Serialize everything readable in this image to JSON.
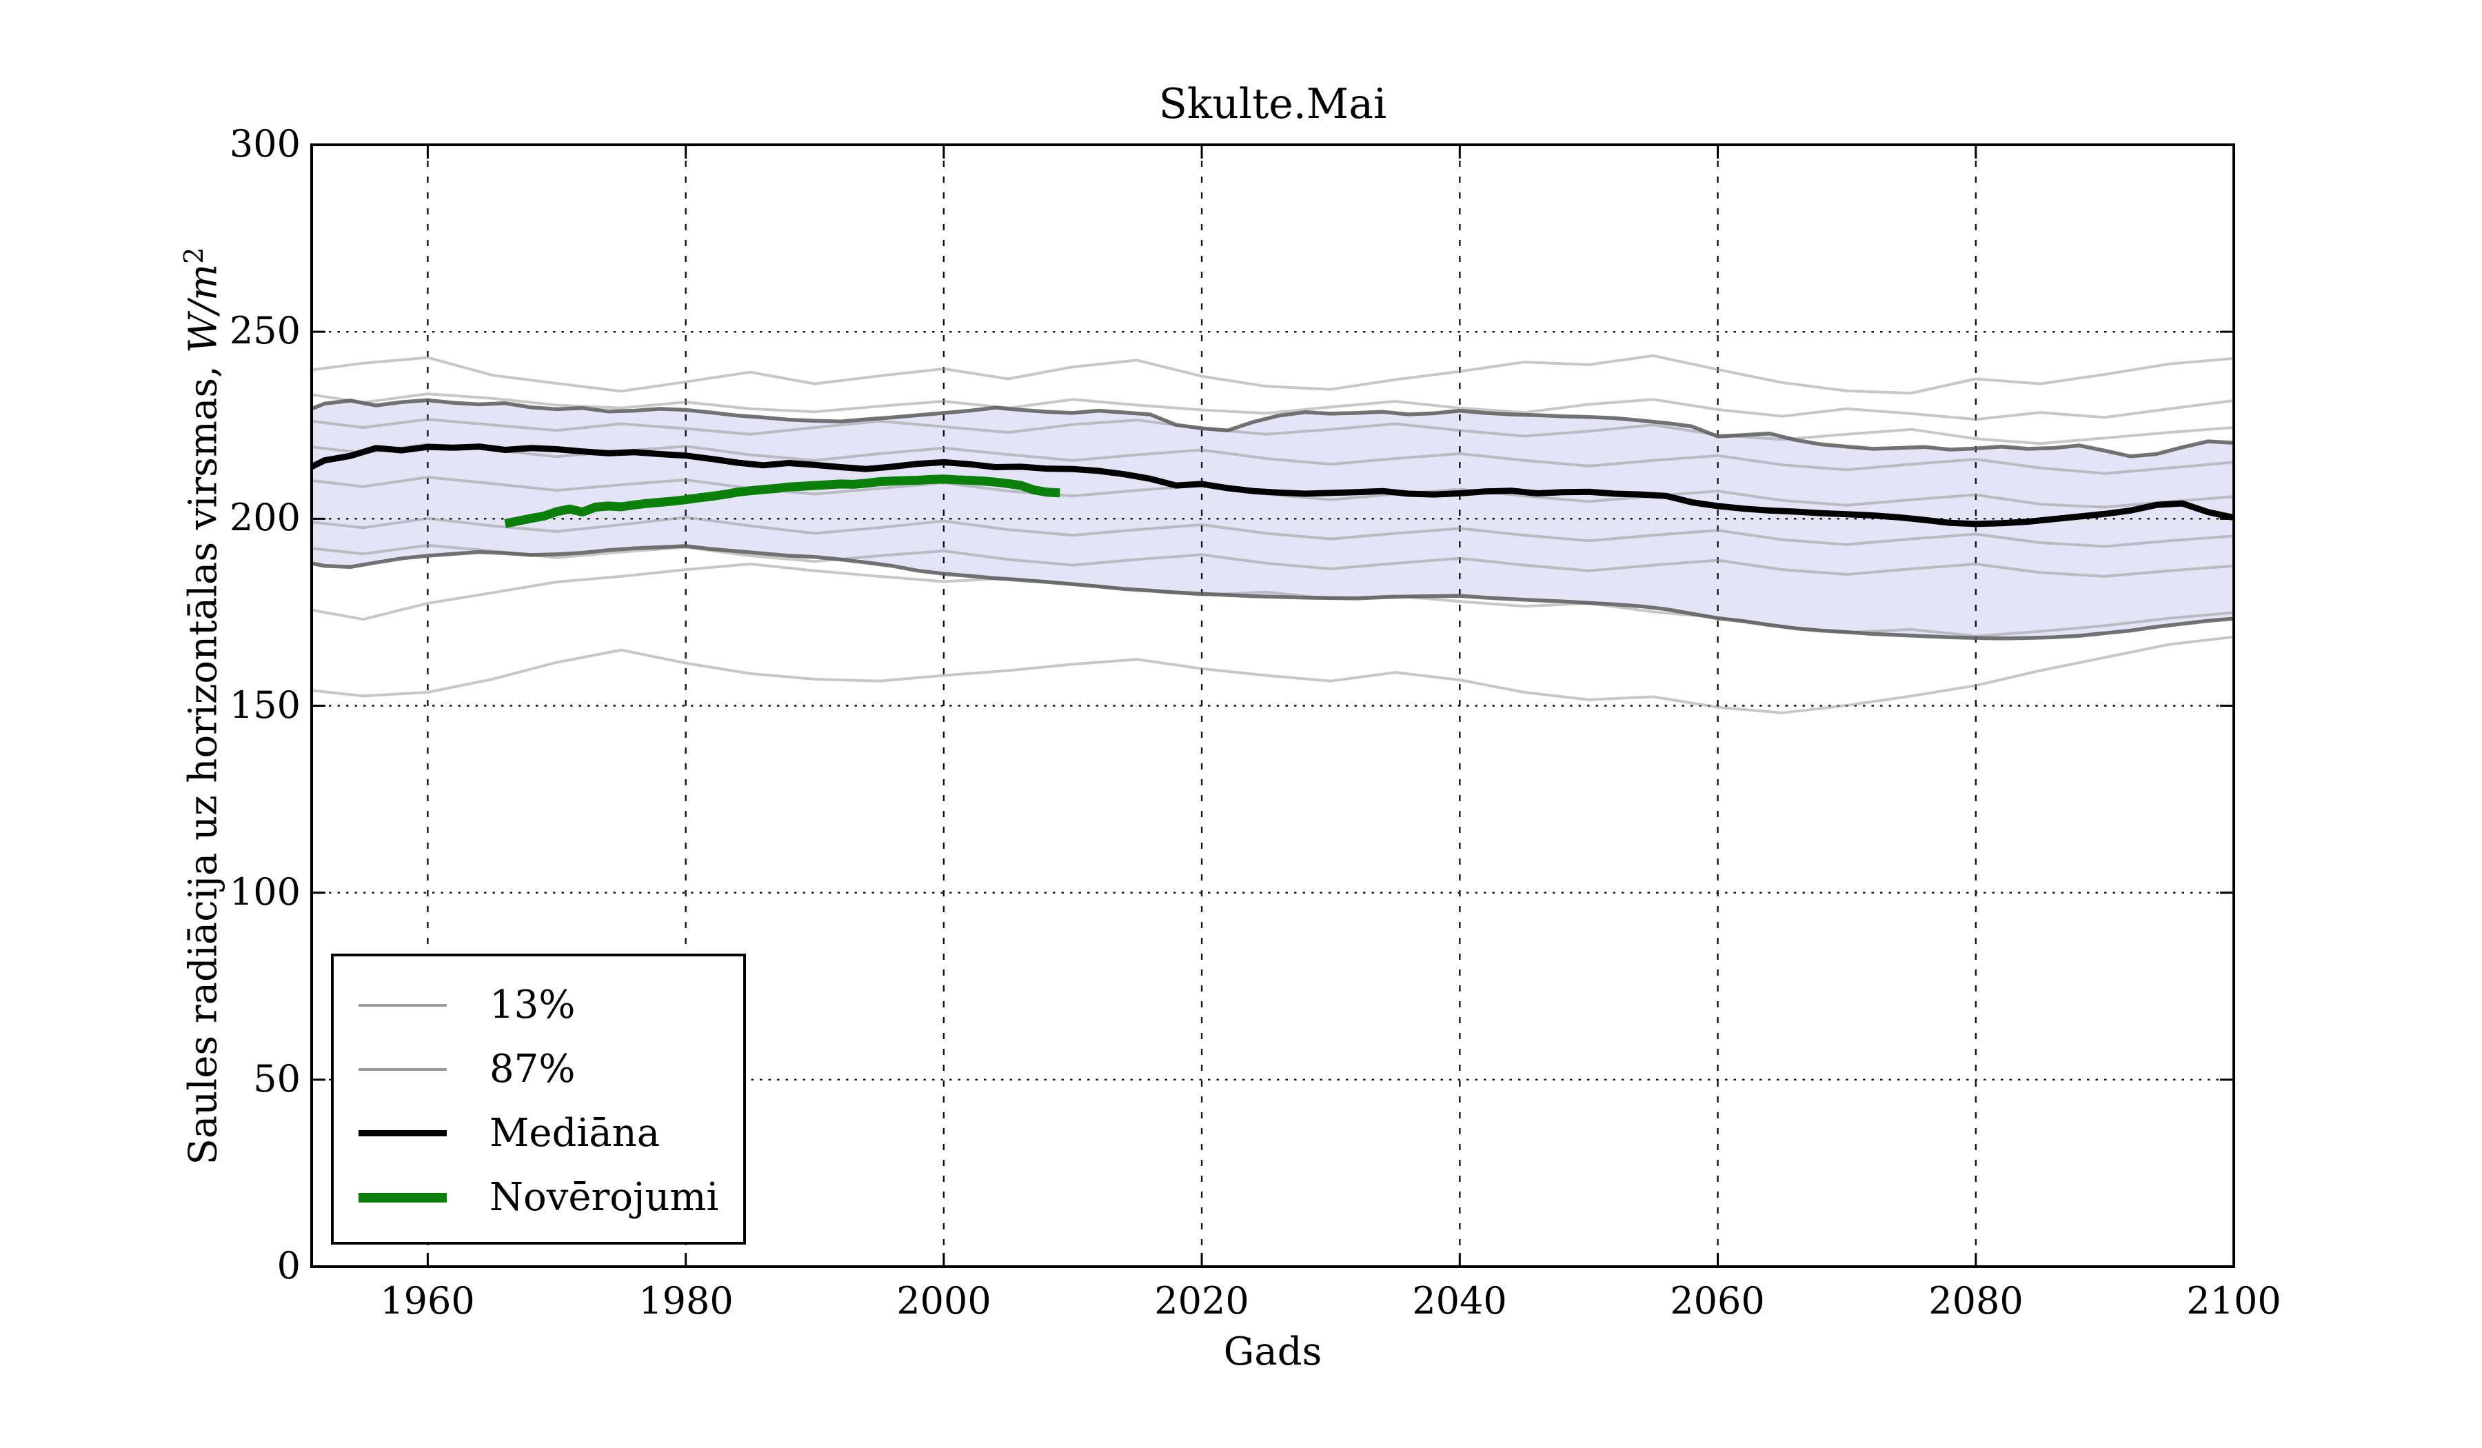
{
  "title": "Skulte.Mai",
  "axes": {
    "x_label": "Gads",
    "y_label_prefix": "Saules radiācija uz horizontālas virsmas, ",
    "y_label_unit": "W/m",
    "y_label_exponent": "2",
    "x_tick_labels": [
      "1960",
      "1980",
      "2000",
      "2020",
      "2040",
      "2060",
      "2080",
      "2100"
    ],
    "y_tick_labels": [
      "300",
      "250",
      "200",
      "150",
      "100",
      "50",
      "0"
    ]
  },
  "legend": {
    "items": [
      {
        "label": "13%",
        "color": "#999999",
        "thickness": 4
      },
      {
        "label": "87%",
        "color": "#999999",
        "thickness": 4
      },
      {
        "label": "Mediāna",
        "color": "#000000",
        "thickness": 9
      },
      {
        "label": "Novērojumi",
        "color": "#0a800a",
        "thickness": 14
      }
    ]
  },
  "chart_data": {
    "type": "line",
    "title": "Skulte.Mai",
    "xlabel": "Gads",
    "ylabel": "Saules radiācija uz horizontālas virsmas, W/m^2",
    "xlim": [
      1951,
      2100
    ],
    "ylim": [
      0,
      300
    ],
    "x_ticks": [
      1960,
      1980,
      2000,
      2020,
      2040,
      2060,
      2080,
      2100
    ],
    "y_ticks": [
      0,
      50,
      100,
      150,
      200,
      250,
      300
    ],
    "grid": true,
    "legend_position": "lower-left",
    "band": {
      "between": [
        "13%",
        "87%"
      ],
      "color": "#5a5ac8",
      "opacity": 0.16
    },
    "years": [
      1951,
      1952,
      1954,
      1956,
      1958,
      1960,
      1962,
      1964,
      1966,
      1968,
      1970,
      1972,
      1974,
      1976,
      1978,
      1980,
      1982,
      1984,
      1986,
      1988,
      1990,
      1992,
      1994,
      1996,
      1998,
      2000,
      2002,
      2004,
      2006,
      2008,
      2010,
      2012,
      2014,
      2016,
      2018,
      2020,
      2022,
      2024,
      2026,
      2028,
      2030,
      2032,
      2034,
      2036,
      2038,
      2040,
      2042,
      2044,
      2046,
      2048,
      2050,
      2052,
      2054,
      2056,
      2058,
      2060,
      2062,
      2064,
      2066,
      2068,
      2070,
      2072,
      2074,
      2076,
      2078,
      2080,
      2082,
      2084,
      2086,
      2088,
      2090,
      2092,
      2094,
      2096,
      2098,
      2100
    ],
    "ensemble_years": [
      1951,
      1955,
      1960,
      1965,
      1970,
      1975,
      1980,
      1985,
      1990,
      1995,
      2000,
      2005,
      2010,
      2015,
      2020,
      2025,
      2030,
      2035,
      2040,
      2045,
      2050,
      2055,
      2060,
      2065,
      2070,
      2075,
      2080,
      2085,
      2090,
      2095,
      2100
    ],
    "series": [
      {
        "name": "87%",
        "role": "p87",
        "color": "#5a5a5a",
        "width": 5.5,
        "opacity": 0.85,
        "y": [
          229.4,
          230.8,
          231.6,
          230.3,
          231.2,
          231.7,
          231.0,
          230.6,
          230.9,
          229.8,
          229.3,
          229.6,
          228.7,
          228.9,
          229.4,
          229.1,
          228.4,
          227.6,
          227.1,
          226.5,
          226.2,
          226.0,
          226.6,
          227.1,
          227.7,
          228.3,
          228.9,
          229.7,
          229.1,
          228.6,
          228.3,
          228.9,
          228.4,
          227.9,
          225.1,
          224.2,
          223.6,
          225.9,
          227.6,
          228.5,
          228.1,
          228.3,
          228.6,
          227.9,
          228.2,
          228.9,
          228.3,
          227.9,
          227.7,
          227.4,
          227.2,
          226.9,
          226.3,
          225.6,
          224.7,
          222.0,
          222.4,
          222.8,
          221.1,
          219.9,
          219.3,
          218.7,
          218.9,
          219.2,
          218.5,
          218.8,
          219.3,
          218.7,
          218.9,
          219.6,
          218.2,
          216.7,
          217.3,
          219.1,
          220.7,
          220.3
        ]
      },
      {
        "name": "13%",
        "role": "p13",
        "color": "#5a5a5a",
        "width": 5.5,
        "opacity": 0.85,
        "y": [
          188.1,
          187.4,
          187.1,
          188.3,
          189.4,
          190.1,
          190.6,
          191.1,
          190.8,
          190.3,
          190.5,
          190.9,
          191.6,
          192.1,
          192.4,
          192.7,
          191.9,
          191.3,
          190.7,
          190.1,
          189.8,
          189.1,
          188.3,
          187.4,
          186.1,
          185.3,
          184.7,
          184.1,
          183.6,
          183.1,
          182.5,
          181.9,
          181.2,
          180.8,
          180.3,
          179.9,
          179.6,
          179.3,
          179.1,
          178.9,
          178.8,
          178.7,
          179.0,
          179.2,
          179.3,
          179.4,
          178.9,
          178.5,
          178.2,
          177.9,
          177.5,
          177.1,
          176.6,
          175.8,
          174.6,
          173.4,
          172.6,
          171.6,
          170.7,
          170.1,
          169.7,
          169.2,
          168.9,
          168.6,
          168.3,
          168.1,
          168.0,
          168.1,
          168.3,
          168.7,
          169.4,
          170.1,
          171.1,
          171.9,
          172.7,
          173.3
        ]
      },
      {
        "name": "Mediāna",
        "role": "median",
        "color": "#000000",
        "width": 9,
        "opacity": 1,
        "y": [
          213.9,
          215.6,
          216.8,
          218.9,
          218.3,
          219.2,
          219.0,
          219.3,
          218.4,
          218.9,
          218.6,
          218.0,
          217.5,
          217.8,
          217.3,
          216.9,
          216.0,
          215.0,
          214.3,
          214.9,
          214.4,
          213.8,
          213.3,
          213.9,
          214.7,
          215.1,
          214.6,
          213.8,
          213.9,
          213.4,
          213.3,
          212.8,
          211.9,
          210.7,
          208.9,
          209.3,
          208.2,
          207.4,
          207.0,
          206.7,
          206.9,
          207.1,
          207.4,
          206.7,
          206.5,
          206.8,
          207.3,
          207.5,
          206.8,
          207.1,
          207.2,
          206.7,
          206.5,
          206.1,
          204.4,
          203.4,
          202.7,
          202.2,
          201.9,
          201.5,
          201.2,
          200.9,
          200.4,
          199.7,
          198.9,
          198.6,
          198.8,
          199.2,
          199.9,
          200.6,
          201.3,
          202.2,
          203.7,
          204.1,
          201.8,
          200.3
        ]
      },
      {
        "name": "Novērojumi",
        "role": "obs",
        "color": "#0a800a",
        "width": 13,
        "opacity": 1,
        "x": [
          1966,
          1967,
          1968,
          1969,
          1970,
          1971,
          1972,
          1973,
          1974,
          1975,
          1976,
          1977,
          1978,
          1979,
          1980,
          1981,
          1982,
          1983,
          1984,
          1985,
          1986,
          1987,
          1988,
          1989,
          1990,
          1991,
          1992,
          1993,
          1994,
          1995,
          1996,
          1997,
          1998,
          1999,
          2000,
          2001,
          2002,
          2003,
          2004,
          2005,
          2006,
          2007,
          2008,
          2009
        ],
        "y": [
          198.7,
          199.4,
          200.1,
          200.7,
          201.9,
          202.6,
          201.8,
          203.1,
          203.4,
          203.2,
          203.7,
          204.1,
          204.4,
          204.7,
          205.1,
          205.6,
          206.0,
          206.5,
          207.1,
          207.5,
          207.8,
          208.1,
          208.5,
          208.7,
          208.9,
          209.1,
          209.3,
          209.2,
          209.5,
          209.9,
          210.1,
          210.2,
          210.3,
          210.5,
          210.6,
          210.4,
          210.3,
          210.1,
          209.8,
          209.4,
          208.9,
          207.7,
          207.1,
          206.9
        ]
      },
      {
        "name": "ensemble-1",
        "role": "ensemble",
        "color": "#909090",
        "width": 4,
        "opacity": 0.5,
        "y": [
          239.8,
          241.6,
          243.1,
          238.4,
          236.2,
          234.1,
          236.6,
          239.2,
          236.1,
          238.2,
          240.1,
          237.4,
          240.6,
          242.4,
          238.1,
          235.4,
          234.6,
          237.2,
          239.4,
          241.9,
          241.2,
          243.6,
          239.9,
          236.4,
          234.2,
          233.6,
          237.4,
          236.1,
          238.6,
          241.4,
          242.9
        ]
      },
      {
        "name": "ensemble-2",
        "role": "ensemble",
        "color": "#909090",
        "width": 4,
        "opacity": 0.5,
        "y": [
          233.2,
          231.1,
          233.4,
          232.2,
          230.4,
          229.6,
          231.2,
          229.4,
          228.6,
          230.1,
          231.4,
          229.6,
          231.9,
          230.4,
          229.1,
          228.2,
          229.9,
          231.4,
          229.6,
          228.4,
          230.6,
          231.9,
          229.2,
          227.4,
          229.4,
          228.1,
          226.6,
          228.4,
          227.1,
          229.4,
          231.6
        ]
      },
      {
        "name": "ensemble-3",
        "role": "ensemble",
        "color": "#909090",
        "width": 4,
        "opacity": 0.5,
        "y": [
          226.1,
          224.4,
          226.6,
          225.1,
          223.6,
          225.4,
          224.1,
          222.6,
          224.4,
          226.1,
          224.6,
          223.1,
          225.2,
          226.4,
          224.1,
          222.6,
          223.9,
          225.4,
          223.6,
          222.1,
          223.4,
          225.1,
          222.4,
          221.2,
          222.6,
          223.9,
          221.4,
          220.1,
          221.6,
          223.1,
          224.4
        ]
      },
      {
        "name": "ensemble-4",
        "role": "ensemble",
        "color": "#909090",
        "width": 4,
        "opacity": 0.5,
        "y": [
          219.2,
          217.6,
          219.9,
          218.4,
          216.6,
          218.1,
          219.4,
          217.1,
          215.6,
          217.4,
          218.9,
          217.2,
          215.6,
          217.1,
          218.4,
          216.1,
          214.6,
          216.1,
          217.4,
          215.6,
          214.1,
          215.6,
          216.9,
          214.4,
          213.1,
          214.6,
          215.9,
          213.6,
          212.1,
          213.6,
          215.1
        ]
      },
      {
        "name": "ensemble-5",
        "role": "ensemble",
        "color": "#909090",
        "width": 4,
        "opacity": 0.5,
        "y": [
          210.2,
          208.6,
          211.1,
          209.4,
          207.6,
          209.1,
          210.4,
          208.1,
          206.6,
          208.1,
          209.6,
          207.4,
          206.1,
          207.6,
          208.9,
          206.6,
          205.1,
          206.6,
          207.9,
          206.1,
          204.6,
          206.1,
          207.4,
          204.9,
          203.6,
          205.1,
          206.4,
          203.9,
          203.1,
          204.6,
          205.9
        ]
      },
      {
        "name": "ensemble-6",
        "role": "ensemble",
        "color": "#909090",
        "width": 4,
        "opacity": 0.5,
        "y": [
          199.1,
          197.6,
          200.1,
          198.1,
          196.6,
          198.4,
          200.4,
          198.1,
          196.1,
          197.6,
          199.4,
          197.1,
          195.6,
          197.1,
          198.4,
          196.1,
          194.6,
          196.1,
          197.4,
          195.6,
          194.1,
          195.6,
          196.9,
          194.4,
          193.1,
          194.6,
          195.9,
          193.6,
          192.6,
          194.1,
          195.4
        ]
      },
      {
        "name": "ensemble-7",
        "role": "ensemble",
        "color": "#909090",
        "width": 4,
        "opacity": 0.5,
        "y": [
          192.1,
          190.6,
          192.9,
          191.4,
          189.6,
          191.1,
          192.4,
          190.1,
          188.6,
          190.1,
          191.4,
          189.1,
          187.6,
          189.1,
          190.4,
          188.1,
          186.6,
          188.1,
          189.4,
          187.6,
          186.1,
          187.6,
          188.9,
          186.4,
          185.1,
          186.6,
          187.9,
          185.6,
          184.6,
          186.1,
          187.4
        ]
      },
      {
        "name": "ensemble-8",
        "role": "ensemble",
        "color": "#909090",
        "width": 4,
        "opacity": 0.5,
        "y": [
          175.6,
          173.1,
          177.4,
          180.2,
          183.1,
          184.6,
          186.4,
          187.9,
          186.1,
          184.6,
          183.2,
          184.1,
          182.6,
          181.1,
          179.6,
          180.4,
          178.6,
          179.4,
          177.9,
          176.6,
          177.4,
          175.1,
          173.6,
          171.1,
          169.6,
          170.4,
          168.6,
          169.9,
          171.4,
          173.4,
          174.9
        ]
      },
      {
        "name": "ensemble-9",
        "role": "ensemble",
        "color": "#909090",
        "width": 4,
        "opacity": 0.5,
        "y": [
          154.1,
          152.6,
          153.6,
          157.1,
          161.6,
          164.9,
          161.4,
          158.6,
          157.1,
          156.6,
          158.1,
          159.4,
          161.1,
          162.4,
          159.9,
          158.1,
          156.6,
          158.9,
          156.9,
          153.6,
          151.6,
          152.4,
          149.6,
          148.1,
          150.1,
          152.6,
          155.4,
          159.4,
          162.9,
          166.4,
          168.4
        ]
      }
    ]
  }
}
